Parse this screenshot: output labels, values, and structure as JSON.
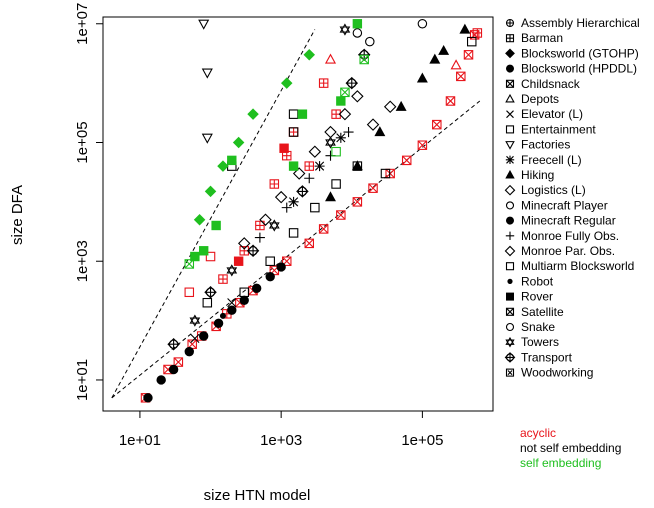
{
  "chart_data": {
    "type": "scatter",
    "title": "",
    "xlabel": "size HTN model",
    "ylabel": "size DFA",
    "x_scale": "log",
    "y_scale": "log",
    "xlim": [
      3,
      1000000
    ],
    "ylim": [
      3,
      13000000
    ],
    "x_ticks": [
      {
        "value": 10,
        "label": "1e+01"
      },
      {
        "value": 1000,
        "label": "1e+03"
      },
      {
        "value": 100000,
        "label": "1e+05"
      }
    ],
    "y_ticks": [
      {
        "value": 10,
        "label": "1e+01"
      },
      {
        "value": 1000,
        "label": "1e+03"
      },
      {
        "value": 100000,
        "label": "1e+05"
      },
      {
        "value": 10000000,
        "label": "1e+07"
      }
    ],
    "reference_lines": [
      {
        "style": "dashed",
        "x": [
          4,
          3000
        ],
        "y": [
          5,
          8000000
        ]
      },
      {
        "style": "dashed",
        "x": [
          4,
          650000
        ],
        "y": [
          5,
          500000
        ]
      }
    ],
    "legend_position": "right",
    "domains": [
      {
        "name": "Assembly Hierarchical",
        "marker": "circle-plus"
      },
      {
        "name": "Barman",
        "marker": "square-plus"
      },
      {
        "name": "Blocksworld (GTOHP)",
        "marker": "diamond-filled"
      },
      {
        "name": "Blocksworld (HPDDL)",
        "marker": "circle-filled"
      },
      {
        "name": "Childsnack",
        "marker": "square-x"
      },
      {
        "name": "Depots",
        "marker": "triangle-open"
      },
      {
        "name": "Elevator (L)",
        "marker": "x"
      },
      {
        "name": "Entertainment",
        "marker": "square-open"
      },
      {
        "name": "Factories",
        "marker": "triangle-down-open"
      },
      {
        "name": "Freecell (L)",
        "marker": "asterisk"
      },
      {
        "name": "Hiking",
        "marker": "triangle-filled"
      },
      {
        "name": "Logistics (L)",
        "marker": "diamond-open"
      },
      {
        "name": "Minecraft Player",
        "marker": "circle-open"
      },
      {
        "name": "Minecraft Regular",
        "marker": "circle-filled"
      },
      {
        "name": "Monroe Fully Obs.",
        "marker": "plus"
      },
      {
        "name": "Monroe Par. Obs.",
        "marker": "diamond-open"
      },
      {
        "name": "Multiarm Blocksworld",
        "marker": "square-open"
      },
      {
        "name": "Robot",
        "marker": "dot"
      },
      {
        "name": "Rover",
        "marker": "square-filled"
      },
      {
        "name": "Satellite",
        "marker": "square-x"
      },
      {
        "name": "Snake",
        "marker": "circle-open"
      },
      {
        "name": "Towers",
        "marker": "star-of-david"
      },
      {
        "name": "Transport",
        "marker": "circle-plus-diamond"
      },
      {
        "name": "Woodworking",
        "marker": "square-x-box"
      }
    ],
    "categories": [
      {
        "name": "acyclic",
        "color": "#e8141b"
      },
      {
        "name": "not self embedding",
        "color": "#000000"
      },
      {
        "name": "self embedding",
        "color": "#1fbf1f"
      }
    ],
    "points": [
      {
        "x": 12,
        "y": 5,
        "marker": "square-x",
        "category": "acyclic"
      },
      {
        "x": 25,
        "y": 15,
        "marker": "square-x",
        "category": "acyclic"
      },
      {
        "x": 35,
        "y": 20,
        "marker": "square-x",
        "category": "acyclic"
      },
      {
        "x": 55,
        "y": 40,
        "marker": "square-x",
        "category": "acyclic"
      },
      {
        "x": 75,
        "y": 55,
        "marker": "square-open",
        "category": "acyclic"
      },
      {
        "x": 120,
        "y": 80,
        "marker": "square-x",
        "category": "acyclic"
      },
      {
        "x": 170,
        "y": 130,
        "marker": "square-plus",
        "category": "acyclic"
      },
      {
        "x": 260,
        "y": 200,
        "marker": "square-x",
        "category": "acyclic"
      },
      {
        "x": 400,
        "y": 320,
        "marker": "square-x",
        "category": "acyclic"
      },
      {
        "x": 800,
        "y": 700,
        "marker": "square-x",
        "category": "acyclic"
      },
      {
        "x": 1200,
        "y": 1000,
        "marker": "square-x",
        "category": "acyclic"
      },
      {
        "x": 2500,
        "y": 2000,
        "marker": "square-x",
        "category": "acyclic"
      },
      {
        "x": 4000,
        "y": 3500,
        "marker": "square-x",
        "category": "acyclic"
      },
      {
        "x": 7000,
        "y": 6000,
        "marker": "square-x",
        "category": "acyclic"
      },
      {
        "x": 12000,
        "y": 10000,
        "marker": "square-x",
        "category": "acyclic"
      },
      {
        "x": 20000,
        "y": 17000,
        "marker": "square-x",
        "category": "acyclic"
      },
      {
        "x": 35000,
        "y": 30000,
        "marker": "square-x",
        "category": "acyclic"
      },
      {
        "x": 60000,
        "y": 50000,
        "marker": "square-x",
        "category": "acyclic"
      },
      {
        "x": 100000,
        "y": 90000,
        "marker": "square-x",
        "category": "acyclic"
      },
      {
        "x": 160000,
        "y": 200000,
        "marker": "square-x",
        "category": "acyclic"
      },
      {
        "x": 250000,
        "y": 500000,
        "marker": "square-x",
        "category": "acyclic"
      },
      {
        "x": 350000,
        "y": 1300000,
        "marker": "square-x",
        "category": "acyclic"
      },
      {
        "x": 450000,
        "y": 3000000,
        "marker": "square-x",
        "category": "acyclic"
      },
      {
        "x": 550000,
        "y": 6500000,
        "marker": "square-x",
        "category": "acyclic"
      },
      {
        "x": 300000,
        "y": 2000000,
        "marker": "triangle-open",
        "category": "acyclic"
      },
      {
        "x": 600000,
        "y": 7000000,
        "marker": "square-plus",
        "category": "acyclic"
      },
      {
        "x": 150,
        "y": 500,
        "marker": "square-plus",
        "category": "acyclic"
      },
      {
        "x": 300,
        "y": 1500,
        "marker": "square-plus",
        "category": "acyclic"
      },
      {
        "x": 500,
        "y": 4000,
        "marker": "square-plus",
        "category": "acyclic"
      },
      {
        "x": 800,
        "y": 20000,
        "marker": "square-plus",
        "category": "acyclic"
      },
      {
        "x": 1200,
        "y": 60000,
        "marker": "square-plus",
        "category": "acyclic"
      },
      {
        "x": 1500,
        "y": 150000,
        "marker": "square-plus",
        "category": "acyclic"
      },
      {
        "x": 2500,
        "y": 40000,
        "marker": "square-plus",
        "category": "acyclic"
      },
      {
        "x": 4000,
        "y": 1000000,
        "marker": "square-plus",
        "category": "acyclic"
      },
      {
        "x": 5000,
        "y": 2500000,
        "marker": "triangle-open",
        "category": "acyclic"
      },
      {
        "x": 6000,
        "y": 300000,
        "marker": "square-plus",
        "category": "acyclic"
      },
      {
        "x": 250,
        "y": 1000,
        "marker": "square-filled",
        "category": "acyclic"
      },
      {
        "x": 1100,
        "y": 80000,
        "marker": "square-filled",
        "category": "acyclic"
      },
      {
        "x": 100,
        "y": 1200,
        "marker": "square-open",
        "category": "acyclic"
      },
      {
        "x": 50,
        "y": 300,
        "marker": "square-open",
        "category": "acyclic"
      },
      {
        "x": 90,
        "y": 200,
        "marker": "square-open",
        "category": "not self embedding"
      },
      {
        "x": 150,
        "y": 120,
        "marker": "dot",
        "category": "not self embedding"
      },
      {
        "x": 13,
        "y": 5,
        "marker": "circle-filled",
        "category": "not self embedding"
      },
      {
        "x": 20,
        "y": 10,
        "marker": "circle-filled",
        "category": "not self embedding"
      },
      {
        "x": 30,
        "y": 15,
        "marker": "circle-filled",
        "category": "not self embedding"
      },
      {
        "x": 50,
        "y": 30,
        "marker": "circle-filled",
        "category": "not self embedding"
      },
      {
        "x": 80,
        "y": 55,
        "marker": "circle-filled",
        "category": "not self embedding"
      },
      {
        "x": 130,
        "y": 90,
        "marker": "circle-filled",
        "category": "not self embedding"
      },
      {
        "x": 200,
        "y": 150,
        "marker": "circle-filled",
        "category": "not self embedding"
      },
      {
        "x": 300,
        "y": 220,
        "marker": "circle-filled",
        "category": "not self embedding"
      },
      {
        "x": 450,
        "y": 350,
        "marker": "circle-filled",
        "category": "not self embedding"
      },
      {
        "x": 700,
        "y": 550,
        "marker": "circle-filled",
        "category": "not self embedding"
      },
      {
        "x": 1000,
        "y": 800,
        "marker": "circle-filled",
        "category": "not self embedding"
      },
      {
        "x": 30,
        "y": 40,
        "marker": "circle-plus-diamond",
        "category": "not self embedding"
      },
      {
        "x": 60,
        "y": 100,
        "marker": "star-of-david",
        "category": "not self embedding"
      },
      {
        "x": 100,
        "y": 300,
        "marker": "circle-plus-diamond",
        "category": "not self embedding"
      },
      {
        "x": 200,
        "y": 700,
        "marker": "star-of-david",
        "category": "not self embedding"
      },
      {
        "x": 400,
        "y": 1500,
        "marker": "circle-plus-diamond",
        "category": "not self embedding"
      },
      {
        "x": 800,
        "y": 4000,
        "marker": "star-of-david",
        "category": "not self embedding"
      },
      {
        "x": 2000,
        "y": 15000,
        "marker": "circle-plus-diamond",
        "category": "not self embedding"
      },
      {
        "x": 5000,
        "y": 100000,
        "marker": "star-of-david",
        "category": "not self embedding"
      },
      {
        "x": 10000,
        "y": 1000000,
        "marker": "circle-plus-diamond",
        "category": "not self embedding"
      },
      {
        "x": 15000,
        "y": 3000000,
        "marker": "circle-plus-diamond",
        "category": "not self embedding"
      },
      {
        "x": 8000,
        "y": 8000000,
        "marker": "star-of-david",
        "category": "not self embedding"
      },
      {
        "x": 18000,
        "y": 5000000,
        "marker": "circle-open",
        "category": "not self embedding"
      },
      {
        "x": 100000,
        "y": 10000000,
        "marker": "circle-open",
        "category": "not self embedding"
      },
      {
        "x": 12000,
        "y": 7000000,
        "marker": "circle-open",
        "category": "not self embedding"
      },
      {
        "x": 300,
        "y": 2000,
        "marker": "diamond-open",
        "category": "not self embedding"
      },
      {
        "x": 600,
        "y": 5000,
        "marker": "diamond-open",
        "category": "not self embedding"
      },
      {
        "x": 1000,
        "y": 12000,
        "marker": "diamond-open",
        "category": "not self embedding"
      },
      {
        "x": 1800,
        "y": 30000,
        "marker": "diamond-open",
        "category": "not self embedding"
      },
      {
        "x": 3000,
        "y": 70000,
        "marker": "diamond-open",
        "category": "not self embedding"
      },
      {
        "x": 5000,
        "y": 150000,
        "marker": "diamond-open",
        "category": "not self embedding"
      },
      {
        "x": 8000,
        "y": 300000,
        "marker": "diamond-open",
        "category": "not self embedding"
      },
      {
        "x": 12000,
        "y": 600000,
        "marker": "diamond-open",
        "category": "not self embedding"
      },
      {
        "x": 20000,
        "y": 200000,
        "marker": "diamond-open",
        "category": "not self embedding"
      },
      {
        "x": 35000,
        "y": 400000,
        "marker": "diamond-open",
        "category": "not self embedding"
      },
      {
        "x": 300,
        "y": 300,
        "marker": "square-open",
        "category": "not self embedding"
      },
      {
        "x": 700,
        "y": 1000,
        "marker": "square-open",
        "category": "not self embedding"
      },
      {
        "x": 1500,
        "y": 3000,
        "marker": "square-open",
        "category": "not self embedding"
      },
      {
        "x": 3000,
        "y": 8000,
        "marker": "square-open",
        "category": "not self embedding"
      },
      {
        "x": 6000,
        "y": 20000,
        "marker": "square-open",
        "category": "not self embedding"
      },
      {
        "x": 12000,
        "y": 40000,
        "marker": "square-open",
        "category": "not self embedding"
      },
      {
        "x": 30000,
        "y": 30000,
        "marker": "square-open",
        "category": "not self embedding"
      },
      {
        "x": 1500,
        "y": 150000,
        "marker": "square-open",
        "category": "not self embedding"
      },
      {
        "x": 500,
        "y": 2500,
        "marker": "plus",
        "category": "not self embedding"
      },
      {
        "x": 1200,
        "y": 8000,
        "marker": "plus",
        "category": "not self embedding"
      },
      {
        "x": 2500,
        "y": 25000,
        "marker": "plus",
        "category": "not self embedding"
      },
      {
        "x": 5000,
        "y": 60000,
        "marker": "plus",
        "category": "not self embedding"
      },
      {
        "x": 9000,
        "y": 150000,
        "marker": "plus",
        "category": "not self embedding"
      },
      {
        "x": 1500,
        "y": 10000,
        "marker": "asterisk",
        "category": "not self embedding"
      },
      {
        "x": 3500,
        "y": 40000,
        "marker": "asterisk",
        "category": "not self embedding"
      },
      {
        "x": 7000,
        "y": 120000,
        "marker": "asterisk",
        "category": "not self embedding"
      },
      {
        "x": 60,
        "y": 50,
        "marker": "x",
        "category": "not self embedding"
      },
      {
        "x": 200,
        "y": 200,
        "marker": "x",
        "category": "not self embedding"
      },
      {
        "x": 5000,
        "y": 12000,
        "marker": "triangle-filled",
        "category": "not self embedding"
      },
      {
        "x": 12000,
        "y": 40000,
        "marker": "triangle-filled",
        "category": "not self embedding"
      },
      {
        "x": 25000,
        "y": 150000,
        "marker": "triangle-filled",
        "category": "not self embedding"
      },
      {
        "x": 50000,
        "y": 400000,
        "marker": "triangle-filled",
        "category": "not self embedding"
      },
      {
        "x": 100000,
        "y": 1200000,
        "marker": "triangle-filled",
        "category": "not self embedding"
      },
      {
        "x": 200000,
        "y": 3500000,
        "marker": "triangle-filled",
        "category": "not self embedding"
      },
      {
        "x": 400000,
        "y": 8000000,
        "marker": "triangle-filled",
        "category": "not self embedding"
      },
      {
        "x": 150000,
        "y": 2500000,
        "marker": "triangle-filled",
        "category": "not self embedding"
      },
      {
        "x": 500000,
        "y": 5000000,
        "marker": "square-open",
        "category": "not self embedding"
      },
      {
        "x": 80,
        "y": 10000000,
        "marker": "triangle-down-open",
        "category": "not self embedding"
      },
      {
        "x": 90,
        "y": 1500000,
        "marker": "triangle-down-open",
        "category": "not self embedding"
      },
      {
        "x": 90,
        "y": 120000,
        "marker": "triangle-down-open",
        "category": "not self embedding"
      },
      {
        "x": 200,
        "y": 40000,
        "marker": "square-open",
        "category": "not self embedding"
      },
      {
        "x": 1500,
        "y": 300000,
        "marker": "square-open",
        "category": "not self embedding"
      },
      {
        "x": 2500,
        "y": 3000000,
        "marker": "diamond-filled",
        "category": "self embedding"
      },
      {
        "x": 1200,
        "y": 1000000,
        "marker": "diamond-filled",
        "category": "self embedding"
      },
      {
        "x": 400,
        "y": 300000,
        "marker": "diamond-filled",
        "category": "self embedding"
      },
      {
        "x": 250,
        "y": 100000,
        "marker": "diamond-filled",
        "category": "self embedding"
      },
      {
        "x": 150,
        "y": 40000,
        "marker": "diamond-filled",
        "category": "self embedding"
      },
      {
        "x": 100,
        "y": 15000,
        "marker": "diamond-filled",
        "category": "self embedding"
      },
      {
        "x": 70,
        "y": 5000,
        "marker": "diamond-filled",
        "category": "self embedding"
      },
      {
        "x": 200,
        "y": 50000,
        "marker": "square-filled",
        "category": "self embedding"
      },
      {
        "x": 120,
        "y": 4000,
        "marker": "square-filled",
        "category": "self embedding"
      },
      {
        "x": 80,
        "y": 1500,
        "marker": "square-filled",
        "category": "self embedding"
      },
      {
        "x": 60,
        "y": 1200,
        "marker": "square-filled",
        "category": "self embedding"
      },
      {
        "x": 50,
        "y": 900,
        "marker": "square-x",
        "category": "self embedding"
      },
      {
        "x": 1500,
        "y": 40000,
        "marker": "square-filled",
        "category": "self embedding"
      },
      {
        "x": 2000,
        "y": 300000,
        "marker": "square-filled",
        "category": "self embedding"
      },
      {
        "x": 7000,
        "y": 500000,
        "marker": "square-filled",
        "category": "self embedding"
      },
      {
        "x": 12000,
        "y": 10000000,
        "marker": "square-filled",
        "category": "self embedding"
      },
      {
        "x": 15000,
        "y": 2500000,
        "marker": "square-x",
        "category": "self embedding"
      },
      {
        "x": 6000,
        "y": 70000,
        "marker": "square-open",
        "category": "self embedding"
      },
      {
        "x": 8000,
        "y": 700000,
        "marker": "square-x",
        "category": "self embedding"
      }
    ]
  }
}
